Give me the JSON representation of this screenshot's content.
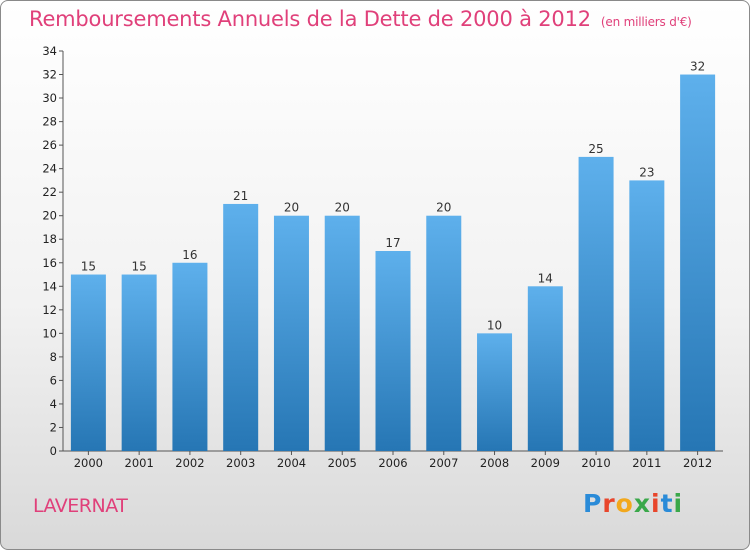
{
  "title": "Remboursements Annuels de la Dette de 2000 à 2012",
  "unit_note": "(en milliers d'€)",
  "town": "LAVERNAT",
  "logo": [
    "P",
    "r",
    "o",
    "x",
    "i",
    "t",
    "i"
  ],
  "colors": {
    "title": "#e0407a",
    "bar_light": "#5eb0ec",
    "bar_dark": "#2676b4",
    "logo": [
      "#2a8bd8",
      "#e8462c",
      "#f2a81d",
      "#3aa84a",
      "#e8462c",
      "#2a8bd8",
      "#3aa84a"
    ]
  },
  "chart_data": {
    "type": "bar",
    "title": "Remboursements Annuels de la Dette de 2000 à 2012",
    "subtitle": "(en milliers d'€)",
    "categories": [
      "2000",
      "2001",
      "2002",
      "2003",
      "2004",
      "2005",
      "2006",
      "2007",
      "2008",
      "2009",
      "2010",
      "2011",
      "2012"
    ],
    "values": [
      15,
      15,
      16,
      21,
      20,
      20,
      17,
      20,
      10,
      14,
      25,
      23,
      32
    ],
    "ylim": [
      0,
      34
    ],
    "yticks": [
      0,
      2,
      4,
      6,
      8,
      10,
      12,
      14,
      16,
      18,
      20,
      22,
      24,
      26,
      28,
      30,
      32,
      34
    ],
    "data_labels": true,
    "grid": false,
    "legend": "none"
  }
}
